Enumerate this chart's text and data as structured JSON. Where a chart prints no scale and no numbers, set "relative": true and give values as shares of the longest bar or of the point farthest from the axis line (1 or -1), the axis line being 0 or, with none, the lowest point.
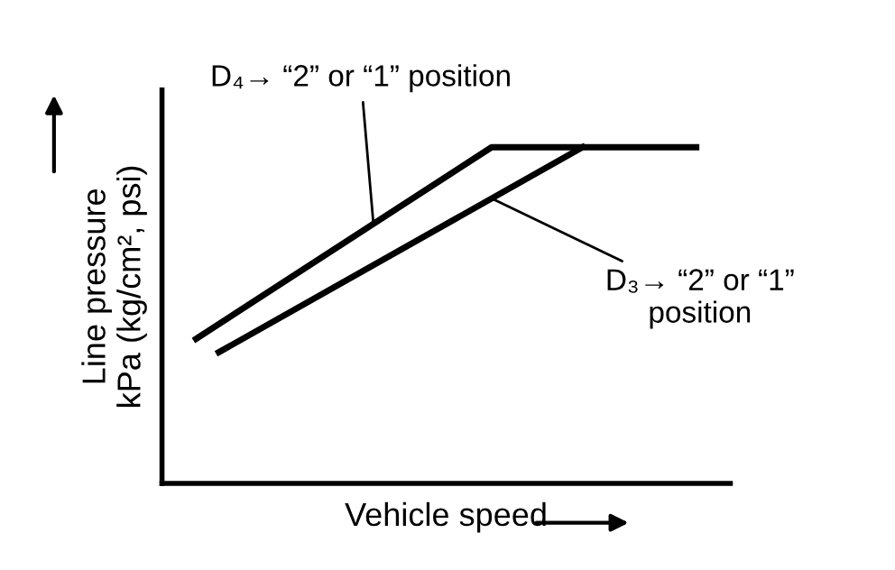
{
  "chart_data": {
    "type": "line",
    "relative": true,
    "xlabel": "Vehicle speed",
    "ylabel": "Line pressure\nkPa (kg/cm², psi)",
    "categories": [
      null,
      null,
      null,
      null,
      null,
      null,
      null,
      null,
      null,
      null,
      null,
      null,
      null,
      null,
      null,
      null,
      null,
      null,
      null,
      null,
      null,
      null,
      null
    ],
    "series": [
      {
        "color": "#000000",
        "values": [
          0.43,
          null,
          null,
          null,
          null,
          null,
          null,
          null,
          null,
          null,
          null,
          null,
          null,
          1,
          null,
          null,
          null,
          null,
          null,
          null,
          null,
          null,
          1
        ]
      },
      {
        "color": "#000000",
        "values": [
          null,
          0.39,
          null,
          null,
          null,
          null,
          null,
          null,
          null,
          null,
          null,
          null,
          null,
          null,
          null,
          null,
          null,
          1,
          null,
          null,
          null,
          null,
          null
        ]
      }
    ],
    "annotations": [
      "D₄→ “2” or “1” position",
      "D₃→ “2” or “1”\nposition"
    ],
    "marker": "none",
    "line_style": "solid"
  }
}
